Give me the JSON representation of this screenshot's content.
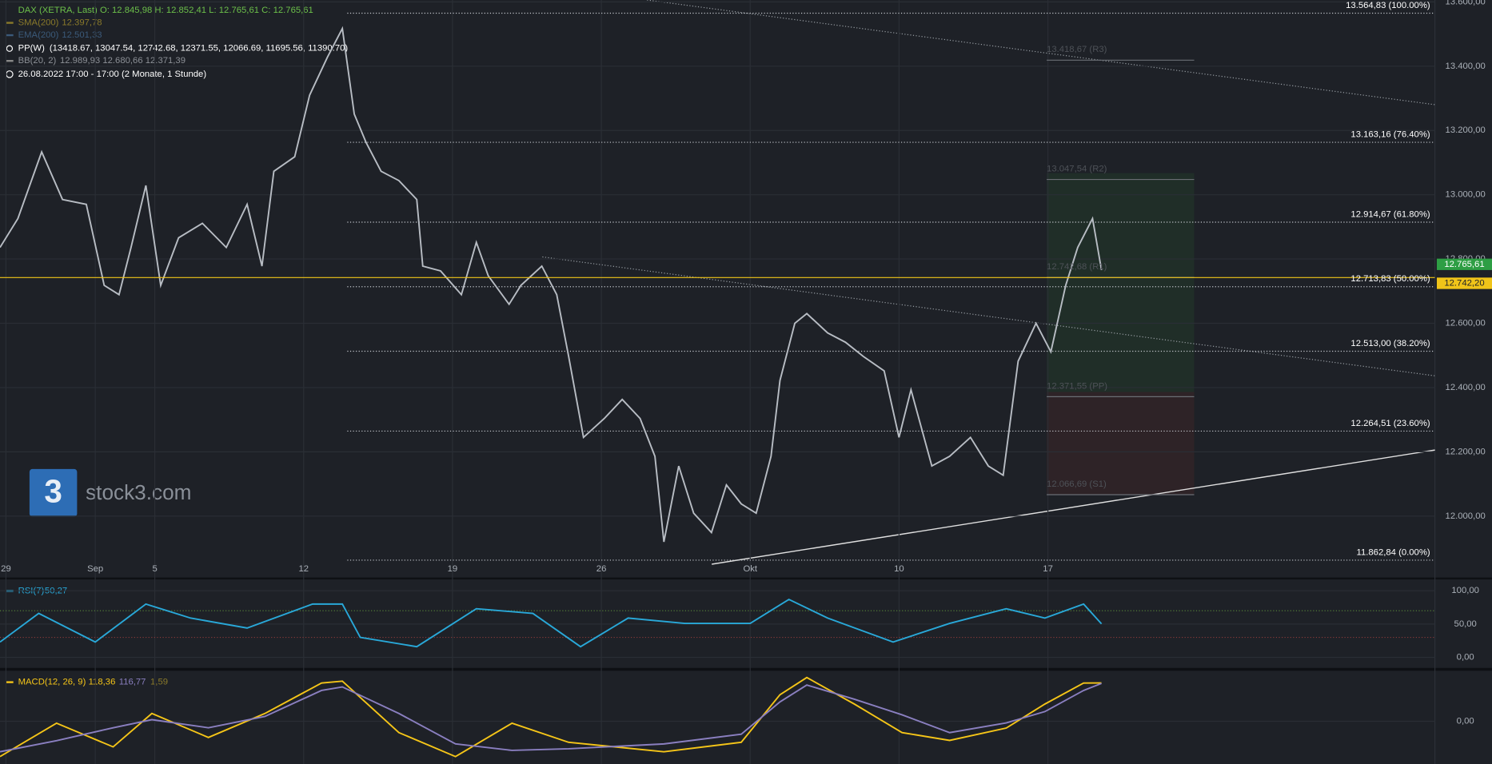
{
  "header": {
    "ohlc": "O: 12.845,98   H: 12.852,41   L: 12.765,61   C: 12.765,61",
    "sma": "SMA(200)",
    "sma_value": "12.397,78",
    "ema": "EMA(200)",
    "ema_value": "12.501,33",
    "pp": "PP(W)",
    "pp_values": "(13418.67, 13047.54, 12742.68, 12371.55, 12066.69, 11695.56, 11390.70)",
    "bb": "BB(20, 2)",
    "bb_values": "12.989,93   12.680,66   12.371,39",
    "period": "26.08.2022 17:00 - 17:00   (2 Monate, 1 Stunde)",
    "watermark": "stock3.com"
  },
  "chart_data": [
    {
      "type": "line",
      "x": [
        -0.2,
        0.4,
        1.2,
        1.9,
        2.7,
        3.3,
        3.8,
        4.2,
        4.7,
        5.2,
        5.8,
        6.6,
        7.4,
        8.1,
        8.6,
        9.0,
        9.7,
        10.2,
        10.8,
        11.3,
        11.7,
        12.1,
        12.6,
        13.2,
        13.8,
        14.0,
        14.6,
        15.3,
        15.8,
        16.2,
        16.9,
        17.3,
        18.0,
        18.5,
        18.9,
        19.4,
        20.1,
        20.7,
        21.3,
        21.8,
        22.1,
        22.6,
        23.1,
        23.7,
        24.2,
        24.7,
        25.2,
        25.7,
        26.0,
        26.5,
        26.9,
        27.6,
        28.2,
        28.8,
        29.5,
        30.0,
        30.4,
        31.1,
        31.7,
        32.4,
        33.0,
        33.5,
        34.0,
        34.6,
        35.1,
        35.6,
        36.0,
        36.5,
        36.8
      ],
      "series": [
        {
          "name": "DAX (XETRA, Last)",
          "color": "#b8bdc4",
          "values": [
            12836,
            12926,
            13133,
            12985,
            12970,
            12718,
            12689,
            12836,
            13029,
            12718,
            12866,
            12911,
            12836,
            12970,
            12778,
            13073,
            13118,
            13310,
            13428,
            13517,
            13251,
            13162,
            13073,
            13044,
            12985,
            12778,
            12763,
            12689,
            12852,
            12748,
            12659,
            12718,
            12778,
            12689,
            12497,
            12245,
            12304,
            12363,
            12304,
            12186,
            11920,
            12156,
            12009,
            11949,
            12097,
            12038,
            12009,
            12186,
            12422,
            12600,
            12630,
            12570,
            12541,
            12497,
            12452,
            12245,
            12393,
            12156,
            12186,
            12245,
            12156,
            12127,
            12482,
            12600,
            12511,
            12718,
            12836,
            12926,
            12765.61
          ]
        }
      ],
      "xlim": [
        -0.2,
        48
      ],
      "xticks": [
        {
          "value": 0,
          "label": "29"
        },
        {
          "value": 3,
          "label": "Sep"
        },
        {
          "value": 5,
          "label": "5"
        },
        {
          "value": 10,
          "label": "12"
        },
        {
          "value": 15,
          "label": "19"
        },
        {
          "value": 20,
          "label": "26"
        },
        {
          "value": 25,
          "label": "Okt"
        },
        {
          "value": 30,
          "label": "10"
        },
        {
          "value": 35,
          "label": "17"
        }
      ],
      "ylim": [
        11800,
        13600
      ],
      "yticks": [
        {
          "value": 13600,
          "label": "13.600,00"
        },
        {
          "value": 13400,
          "label": "13.400,00"
        },
        {
          "value": 13200,
          "label": "13.200,00"
        },
        {
          "value": 13000,
          "label": "13.000,00"
        },
        {
          "value": 12800,
          "label": "12.800,00"
        },
        {
          "value": 12600,
          "label": "12.600,00"
        },
        {
          "value": 12400,
          "label": "12.400,00"
        },
        {
          "value": 12200,
          "label": "12.200,00"
        },
        {
          "value": 12000,
          "label": "12.000,00"
        }
      ],
      "grid": true,
      "levels": [
        {
          "value": 13564.83,
          "label": "13.564,83 (100.00%)"
        },
        {
          "value": 13163.16,
          "label": "13.163,16 (76.40%)"
        },
        {
          "value": 12914.67,
          "label": "12.914,67 (61.80%)"
        },
        {
          "value": 12713.83,
          "label": "12.713,83 (50.00%)"
        },
        {
          "value": 12513.0,
          "label": "12.513,00 (38.20%)"
        },
        {
          "value": 12264.51,
          "label": "12.264,51 (23.60%)"
        },
        {
          "value": 11862.84,
          "label": "11.862,84 (0.00%)"
        }
      ],
      "pivots": [
        {
          "value": 13418.67,
          "label": "13.418,67 (R3)"
        },
        {
          "value": 13047.54,
          "label": "13.047,54 (R2)"
        },
        {
          "value": 12742.68,
          "label": "12.742,68 (R1)"
        },
        {
          "value": 12371.55,
          "label": "12.371,55 (PP)"
        },
        {
          "value": 12066.69,
          "label": "12.066,69 (S1)"
        }
      ],
      "price_tags": [
        {
          "value": 12765.61,
          "label": "12.765,61",
          "color": "#2e9e44"
        },
        {
          "value": 12742.2,
          "label": "12.742,20",
          "color": "#f0c419"
        }
      ]
    },
    {
      "type": "line",
      "x": [
        -0.2,
        1.1,
        3.0,
        4.7,
        6.2,
        8.1,
        10.3,
        11.3,
        11.9,
        13.8,
        15.8,
        17.7,
        19.3,
        20.9,
        22.8,
        25.0,
        26.3,
        27.6,
        29.8,
        31.7,
        33.6,
        34.9,
        36.2,
        36.8
      ],
      "series": [
        {
          "name": "RSI(7)",
          "color": "#29a8d8",
          "values": [
            23,
            66,
            23,
            80,
            59,
            44,
            80,
            80,
            30,
            16,
            73,
            66,
            16,
            59,
            51,
            51,
            87,
            59,
            23,
            51,
            73,
            59,
            80,
            50.27
          ]
        }
      ],
      "legend_values": [
        "50,27"
      ],
      "ylim": [
        -13,
        117
      ],
      "yticks": [
        {
          "value": 100,
          "label": "100,00"
        },
        {
          "value": 50,
          "label": "50,00"
        },
        {
          "value": 0,
          "label": "0,00"
        }
      ],
      "levels": [
        70,
        30
      ]
    },
    {
      "type": "line",
      "x": [
        -0.2,
        1.7,
        3.6,
        4.9,
        6.8,
        8.7,
        10.6,
        11.3,
        13.2,
        15.1,
        17.0,
        18.9,
        22.1,
        24.7,
        26.0,
        26.9,
        28.5,
        30.1,
        31.7,
        33.6,
        34.9,
        36.2,
        36.8
      ],
      "series": [
        {
          "name": "MACD(12, 26, 9)",
          "color": "#f5c518",
          "values": [
            -109,
            -6,
            -79,
            24,
            -50,
            24,
            118,
            124,
            -35,
            -109,
            -6,
            -65,
            -94,
            -65,
            82,
            135,
            53,
            -35,
            -59,
            -21,
            53,
            118,
            118.36
          ]
        },
        {
          "color": "#8a7fc0",
          "values": [
            -94,
            -60,
            -20,
            5,
            -20,
            15,
            95,
            106,
            24,
            -70,
            -90,
            -85,
            -70,
            -40,
            60,
            112,
            68,
            20,
            -35,
            -5,
            30,
            95,
            116.77
          ]
        }
      ],
      "legend_values": [
        "118,36",
        "116,77",
        "1,59"
      ],
      "ylim": [
        -132,
        153
      ],
      "yticks": [
        {
          "value": 0,
          "label": "0,00"
        }
      ]
    }
  ]
}
